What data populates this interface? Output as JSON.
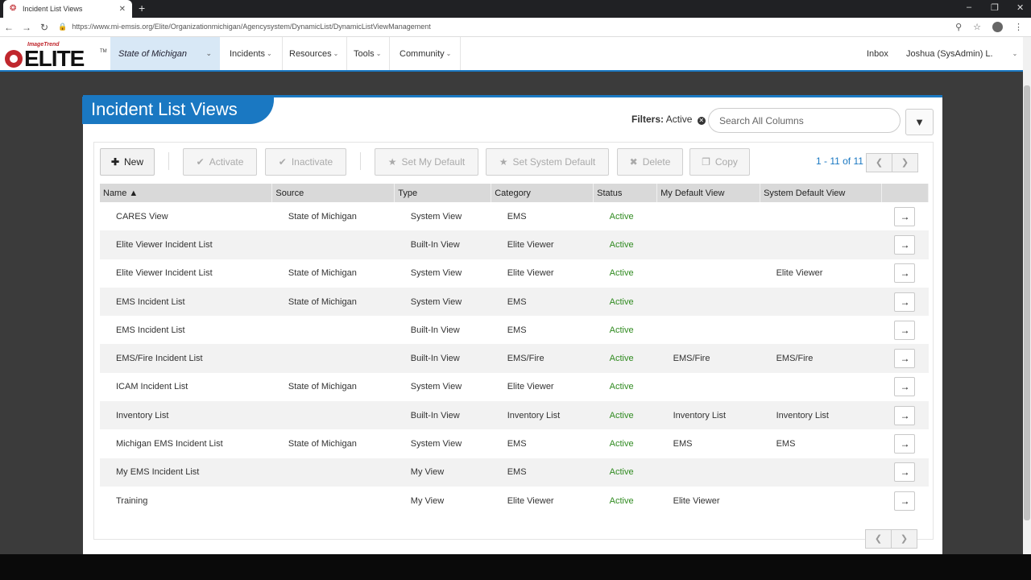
{
  "browser": {
    "tab_title": "Incident List Views",
    "url": "https://www.mi-emsis.org/Elite/Organizationmichigan/Agencysystem/DynamicList/DynamicListViewManagement"
  },
  "appnav": {
    "logo_small": "ImageTrend",
    "logo_word": "ELITE",
    "logo_tm": "TM",
    "state": "State of Michigan",
    "menus": [
      "Incidents",
      "Resources",
      "Tools",
      "Community"
    ],
    "inbox": "Inbox",
    "user": "Joshua (SysAdmin) L."
  },
  "page": {
    "title": "Incident List Views",
    "filters_label": "Filters:",
    "filters_value": "Active",
    "search_placeholder": "Search All Columns"
  },
  "toolbar": {
    "new": "New",
    "activate": "Activate",
    "inactivate": "Inactivate",
    "set_my_default": "Set My Default",
    "set_system_default": "Set System Default",
    "delete": "Delete",
    "copy": "Copy"
  },
  "pager": {
    "text": "1 - 11 of 11"
  },
  "table": {
    "columns": [
      "Name",
      "Source",
      "Type",
      "Category",
      "Status",
      "My Default View",
      "System Default View"
    ],
    "rows": [
      {
        "name": "CARES View",
        "source": "State of Michigan",
        "type": "System View",
        "category": "EMS",
        "status": "Active",
        "my_default": "",
        "system_default": ""
      },
      {
        "name": "Elite Viewer Incident List",
        "source": "",
        "type": "Built-In View",
        "category": "Elite Viewer",
        "status": "Active",
        "my_default": "",
        "system_default": ""
      },
      {
        "name": "Elite Viewer Incident List",
        "source": "State of Michigan",
        "type": "System View",
        "category": "Elite Viewer",
        "status": "Active",
        "my_default": "",
        "system_default": "Elite Viewer"
      },
      {
        "name": "EMS Incident List",
        "source": "State of Michigan",
        "type": "System View",
        "category": "EMS",
        "status": "Active",
        "my_default": "",
        "system_default": ""
      },
      {
        "name": "EMS Incident List",
        "source": "",
        "type": "Built-In View",
        "category": "EMS",
        "status": "Active",
        "my_default": "",
        "system_default": ""
      },
      {
        "name": "EMS/Fire Incident List",
        "source": "",
        "type": "Built-In View",
        "category": "EMS/Fire",
        "status": "Active",
        "my_default": "EMS/Fire",
        "system_default": "EMS/Fire"
      },
      {
        "name": "ICAM Incident List",
        "source": "State of Michigan",
        "type": "System View",
        "category": "Elite Viewer",
        "status": "Active",
        "my_default": "",
        "system_default": ""
      },
      {
        "name": "Inventory List",
        "source": "",
        "type": "Built-In View",
        "category": "Inventory List",
        "status": "Active",
        "my_default": "Inventory List",
        "system_default": "Inventory List"
      },
      {
        "name": "Michigan EMS Incident List",
        "source": "State of Michigan",
        "type": "System View",
        "category": "EMS",
        "status": "Active",
        "my_default": "EMS",
        "system_default": "EMS"
      },
      {
        "name": "My EMS Incident List",
        "source": "",
        "type": "My View",
        "category": "EMS",
        "status": "Active",
        "my_default": "",
        "system_default": ""
      },
      {
        "name": "Training",
        "source": "",
        "type": "My View",
        "category": "Elite Viewer",
        "status": "Active",
        "my_default": "Elite Viewer",
        "system_default": ""
      }
    ]
  }
}
